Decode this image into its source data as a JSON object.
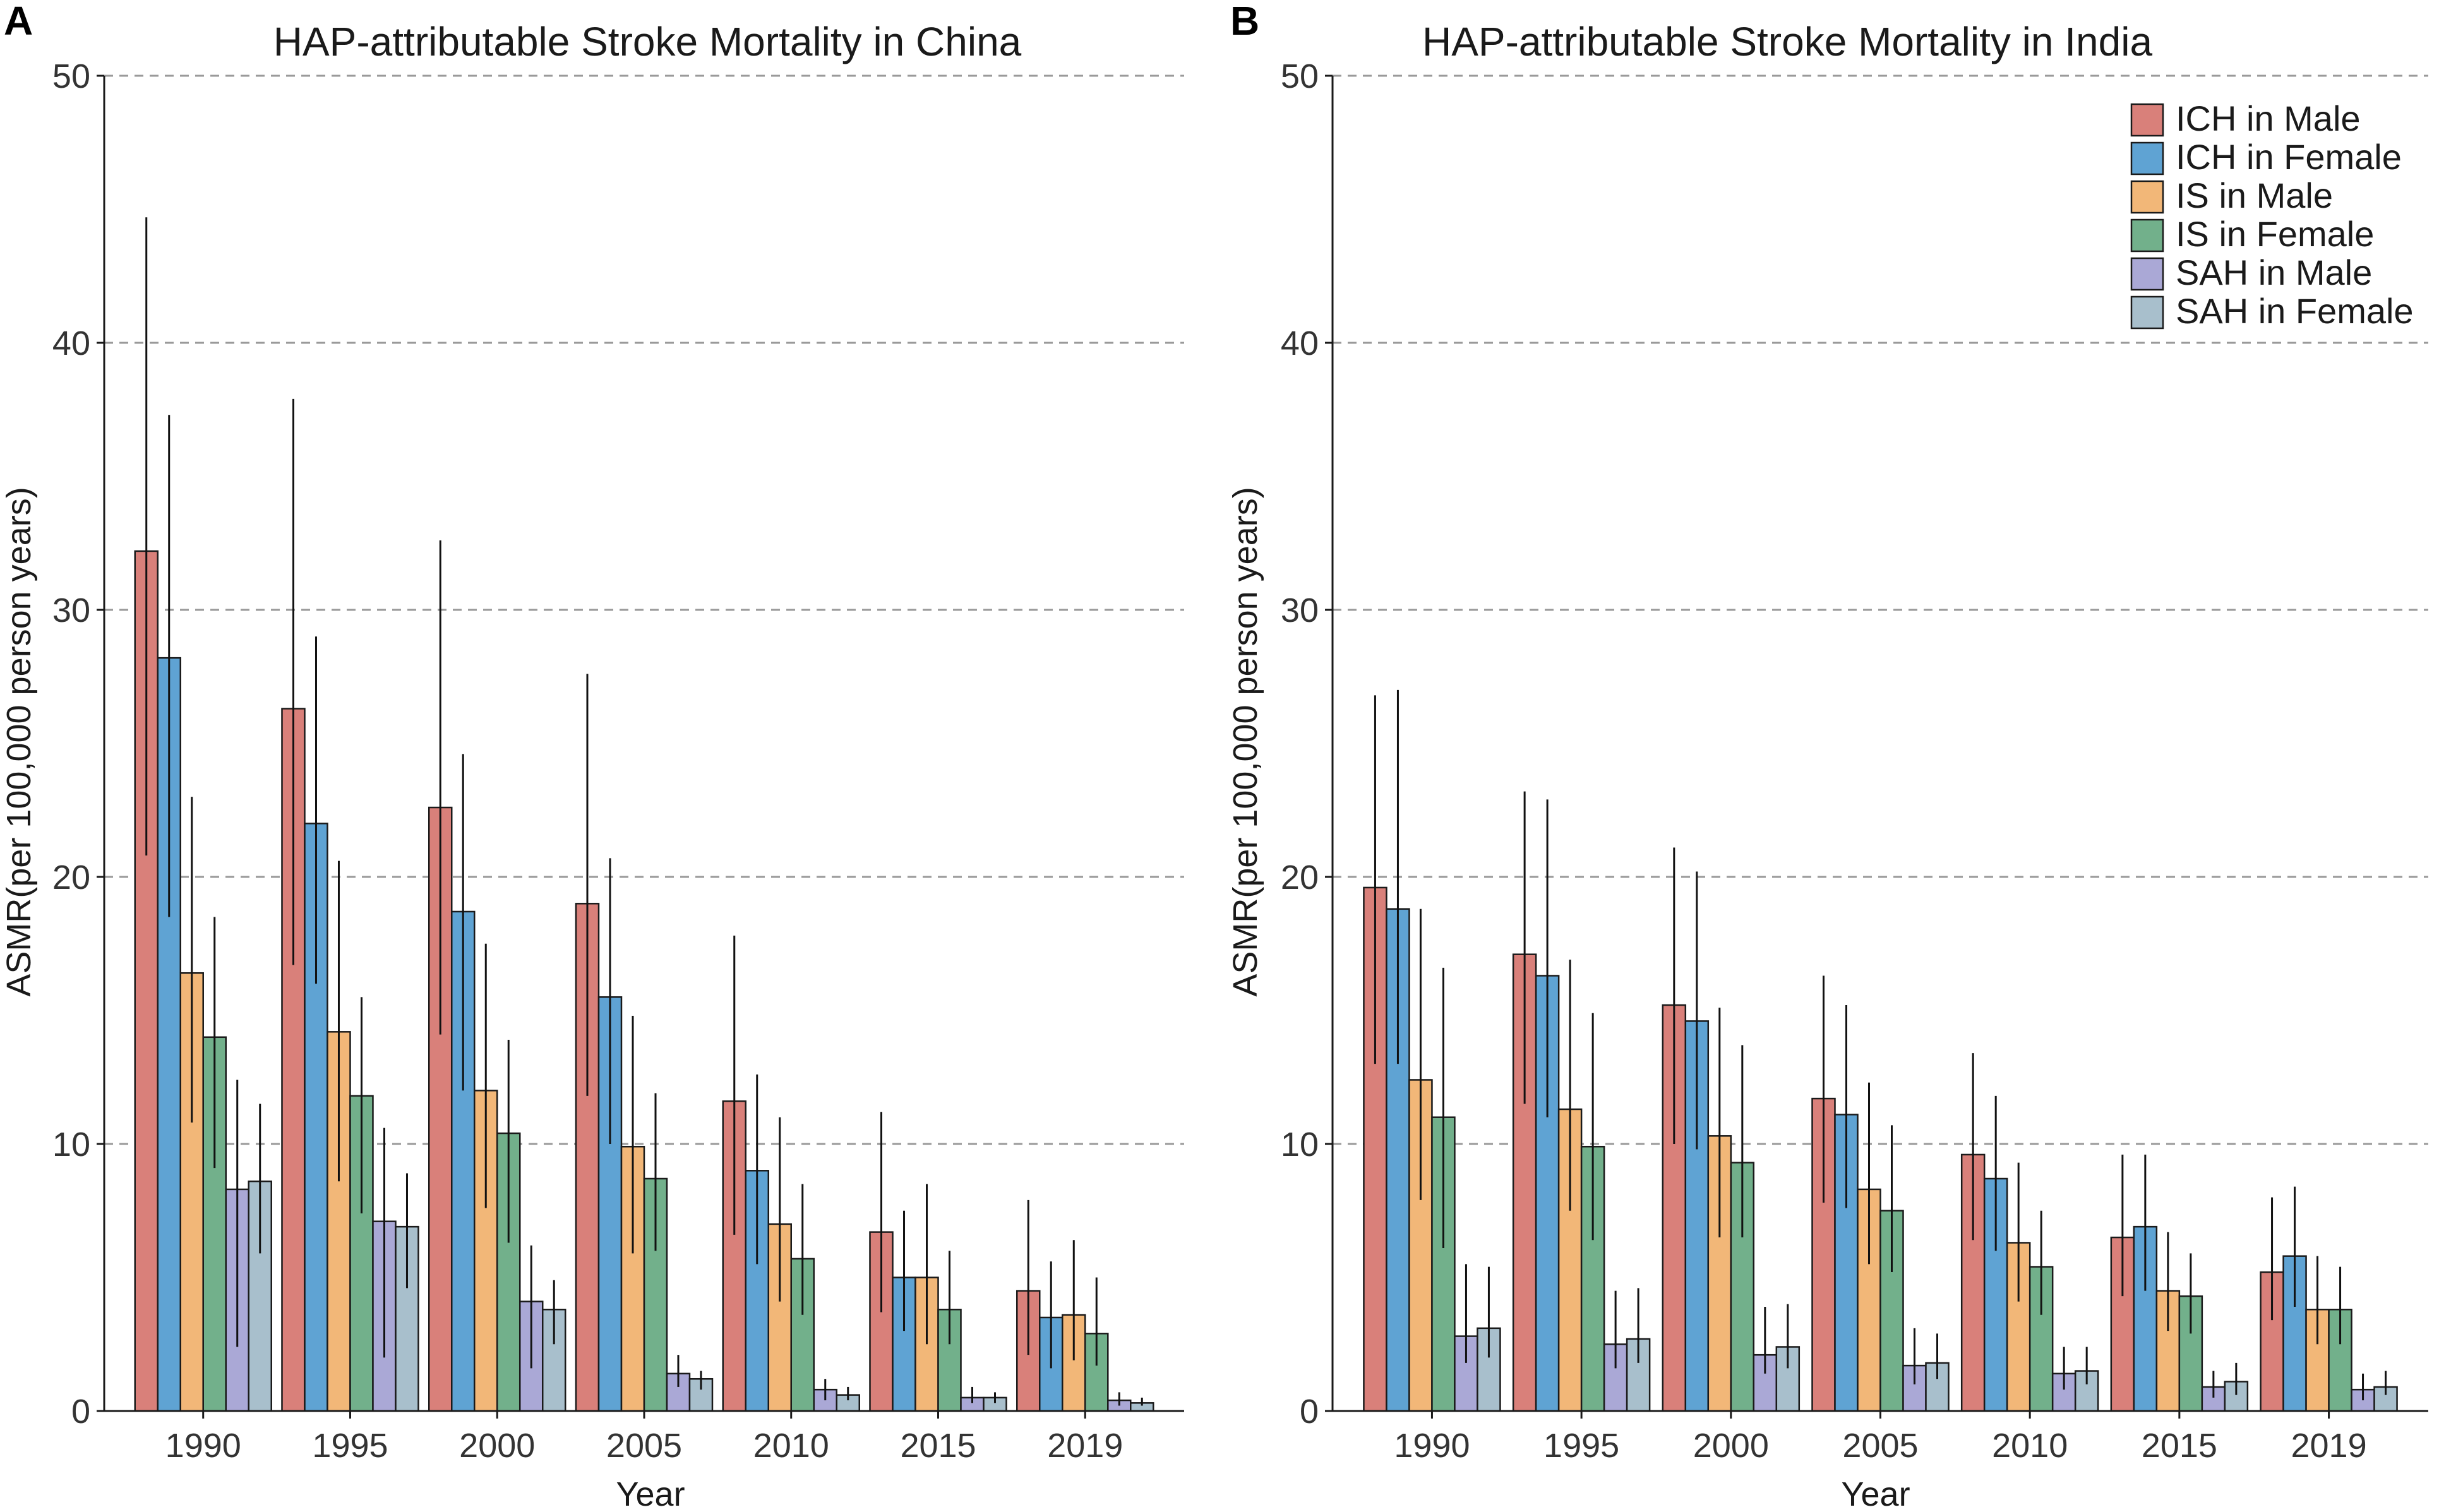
{
  "chart_data": [
    {
      "panel": "A",
      "type": "bar",
      "title": "HAP-attributable Stroke Mortality in China",
      "xlabel": "Year",
      "ylabel": "ASMR(per 100,000 person years)",
      "ylim": [
        0,
        50
      ],
      "yticks": [
        0,
        10,
        20,
        30,
        40,
        50
      ],
      "grid": true,
      "categories": [
        "1990",
        "1995",
        "2000",
        "2005",
        "2010",
        "2015",
        "2019"
      ],
      "series": [
        {
          "name": "ICH in Male",
          "color": "#D9807A",
          "values": [
            32.2,
            26.3,
            22.6,
            19.0,
            11.6,
            6.7,
            4.5
          ],
          "lower": [
            20.8,
            16.7,
            14.1,
            11.8,
            6.6,
            3.7,
            2.1
          ],
          "upper": [
            44.7,
            37.9,
            32.6,
            27.6,
            17.8,
            11.2,
            7.9
          ]
        },
        {
          "name": "ICH in Female",
          "color": "#5FA3D3",
          "values": [
            28.2,
            22.0,
            18.7,
            15.5,
            9.0,
            5.0,
            3.5
          ],
          "lower": [
            18.5,
            16.0,
            12.0,
            10.0,
            5.5,
            3.0,
            1.6
          ],
          "upper": [
            37.3,
            29.0,
            24.6,
            20.7,
            12.6,
            7.5,
            5.6
          ]
        },
        {
          "name": "IS in Male",
          "color": "#F2B778",
          "values": [
            16.4,
            14.2,
            12.0,
            9.9,
            7.0,
            5.0,
            3.6
          ],
          "lower": [
            10.8,
            8.6,
            7.6,
            5.9,
            4.1,
            2.5,
            1.9
          ],
          "upper": [
            23.0,
            20.6,
            17.5,
            14.8,
            11.0,
            8.5,
            6.4
          ]
        },
        {
          "name": "IS in Female",
          "color": "#72B08B",
          "values": [
            14.0,
            11.8,
            10.4,
            8.7,
            5.7,
            3.8,
            2.9
          ],
          "lower": [
            9.1,
            7.4,
            6.3,
            6.0,
            3.6,
            2.5,
            1.7
          ],
          "upper": [
            18.5,
            15.5,
            13.9,
            11.9,
            8.5,
            6.0,
            5.0
          ]
        },
        {
          "name": "SAH in Male",
          "color": "#AAA8D6",
          "values": [
            8.3,
            7.1,
            4.1,
            1.4,
            0.8,
            0.5,
            0.4
          ],
          "lower": [
            2.4,
            2.0,
            1.6,
            0.9,
            0.4,
            0.3,
            0.2
          ],
          "upper": [
            12.4,
            10.6,
            6.2,
            2.1,
            1.2,
            0.9,
            0.7
          ]
        },
        {
          "name": "SAH in Female",
          "color": "#A8BFCC",
          "values": [
            8.6,
            6.9,
            3.8,
            1.2,
            0.6,
            0.5,
            0.3
          ],
          "lower": [
            5.9,
            4.6,
            2.5,
            0.8,
            0.4,
            0.3,
            0.2
          ],
          "upper": [
            11.5,
            8.9,
            4.9,
            1.5,
            0.9,
            0.7,
            0.5
          ]
        }
      ]
    },
    {
      "panel": "B",
      "type": "bar",
      "title": "HAP-attributable Stroke Mortality in India",
      "xlabel": "Year",
      "ylabel": "ASMR(per 100,000 person years)",
      "ylim": [
        0,
        50
      ],
      "yticks": [
        0,
        10,
        20,
        30,
        40,
        50
      ],
      "grid": true,
      "legend_position": "top-right",
      "categories": [
        "1990",
        "1995",
        "2000",
        "2005",
        "2010",
        "2015",
        "2019"
      ],
      "series": [
        {
          "name": "ICH in Male",
          "color": "#D9807A",
          "values": [
            19.6,
            17.1,
            15.2,
            11.7,
            9.6,
            6.5,
            5.2
          ],
          "lower": [
            13.0,
            11.5,
            10.0,
            7.8,
            6.4,
            4.3,
            3.4
          ],
          "upper": [
            26.8,
            23.2,
            21.1,
            16.3,
            13.4,
            9.6,
            8.0
          ]
        },
        {
          "name": "ICH in Female",
          "color": "#5FA3D3",
          "values": [
            18.8,
            16.3,
            14.6,
            11.1,
            8.7,
            6.9,
            5.8
          ],
          "lower": [
            13.0,
            11.0,
            9.8,
            7.6,
            6.0,
            4.5,
            3.9
          ],
          "upper": [
            27.0,
            22.9,
            20.2,
            15.2,
            11.8,
            9.6,
            8.4
          ]
        },
        {
          "name": "IS in Male",
          "color": "#F2B778",
          "values": [
            12.4,
            11.3,
            10.3,
            8.3,
            6.3,
            4.5,
            3.8
          ],
          "lower": [
            7.9,
            7.5,
            6.5,
            5.5,
            4.1,
            3.0,
            2.5
          ],
          "upper": [
            18.8,
            16.9,
            15.1,
            12.3,
            9.3,
            6.7,
            5.8
          ]
        },
        {
          "name": "IS in Female",
          "color": "#72B08B",
          "values": [
            11.0,
            9.9,
            9.3,
            7.5,
            5.4,
            4.3,
            3.8
          ],
          "lower": [
            6.1,
            6.4,
            6.5,
            5.2,
            3.6,
            2.9,
            2.5
          ],
          "upper": [
            16.6,
            14.9,
            13.7,
            10.7,
            7.5,
            5.9,
            5.4
          ]
        },
        {
          "name": "SAH in Male",
          "color": "#AAA8D6",
          "values": [
            2.8,
            2.5,
            2.1,
            1.7,
            1.4,
            0.9,
            0.8
          ],
          "lower": [
            1.8,
            1.6,
            1.4,
            1.0,
            0.8,
            0.5,
            0.4
          ],
          "upper": [
            5.5,
            4.5,
            3.9,
            3.1,
            2.4,
            1.5,
            1.4
          ]
        },
        {
          "name": "SAH in Female",
          "color": "#A8BFCC",
          "values": [
            3.1,
            2.7,
            2.4,
            1.8,
            1.5,
            1.1,
            0.9
          ],
          "lower": [
            2.0,
            1.8,
            1.6,
            1.2,
            1.0,
            0.6,
            0.6
          ],
          "upper": [
            5.4,
            4.6,
            4.0,
            2.9,
            2.4,
            1.8,
            1.5
          ]
        }
      ]
    }
  ]
}
